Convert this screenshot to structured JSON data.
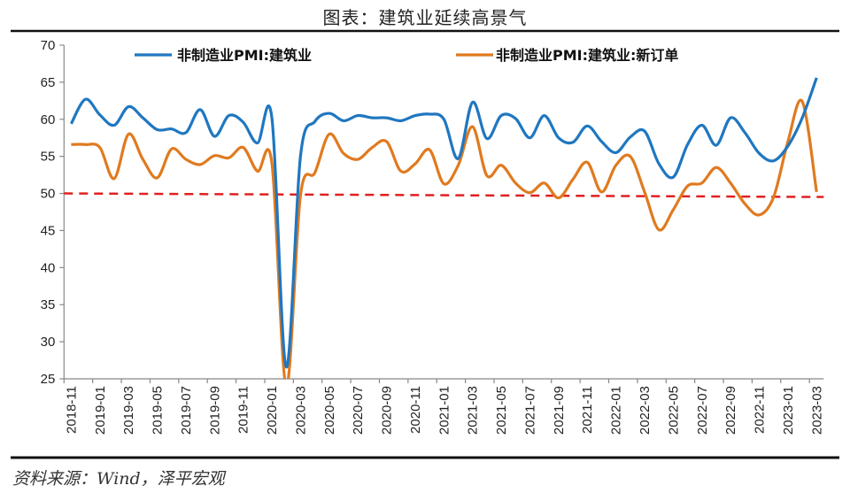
{
  "chart_data": {
    "type": "line",
    "title": "图表：建筑业延续高景气",
    "source": "资料来源：Wind，泽平宏观",
    "xlabel": "",
    "ylabel": "",
    "ylim": [
      25,
      70
    ],
    "yticks": [
      25,
      30,
      35,
      40,
      45,
      50,
      55,
      60,
      65,
      70
    ],
    "grid": false,
    "legend_position": "top",
    "categories": [
      "2018-11",
      "2018-12",
      "2019-01",
      "2019-02",
      "2019-03",
      "2019-04",
      "2019-05",
      "2019-06",
      "2019-07",
      "2019-08",
      "2019-09",
      "2019-10",
      "2019-11",
      "2019-12",
      "2020-01",
      "2020-02",
      "2020-03",
      "2020-04",
      "2020-05",
      "2020-06",
      "2020-07",
      "2020-08",
      "2020-09",
      "2020-10",
      "2020-11",
      "2020-12",
      "2021-01",
      "2021-02",
      "2021-03",
      "2021-04",
      "2021-05",
      "2021-06",
      "2021-07",
      "2021-08",
      "2021-09",
      "2021-10",
      "2021-11",
      "2021-12",
      "2022-01",
      "2022-02",
      "2022-03",
      "2022-04",
      "2022-05",
      "2022-06",
      "2022-07",
      "2022-08",
      "2022-09",
      "2022-10",
      "2022-11",
      "2022-12",
      "2023-01",
      "2023-02",
      "2023-03"
    ],
    "series": [
      {
        "name": "非制造业PMI:建筑业",
        "color": "#1f77c0",
        "values": [
          59.4,
          62.7,
          60.6,
          59.2,
          61.7,
          60.2,
          58.6,
          58.7,
          58.2,
          61.3,
          57.7,
          60.5,
          59.6,
          56.8,
          60.2,
          26.6,
          55.1,
          59.7,
          60.8,
          59.8,
          60.5,
          60.2,
          60.2,
          59.8,
          60.5,
          60.7,
          60.0,
          54.7,
          62.3,
          57.4,
          60.5,
          60.1,
          57.5,
          60.5,
          57.5,
          56.9,
          59.1,
          57.0,
          55.5,
          57.6,
          58.4,
          54.0,
          52.2,
          56.6,
          59.2,
          56.5,
          60.2,
          58.2,
          55.4,
          54.4,
          56.4,
          60.2,
          65.6
        ]
      },
      {
        "name": "非制造业PMI:建筑业:新订单",
        "color": "#e07a1f",
        "values": [
          56.6,
          56.6,
          56.2,
          52.0,
          58.0,
          54.6,
          52.1,
          56.0,
          54.6,
          53.9,
          55.1,
          54.8,
          56.2,
          53.0,
          54.1,
          24.0,
          49.8,
          52.8,
          58.0,
          55.4,
          54.6,
          56.2,
          57.0,
          53.0,
          54.0,
          55.9,
          51.3,
          53.8,
          59.0,
          52.4,
          53.8,
          51.4,
          50.1,
          51.4,
          49.4,
          51.9,
          54.2,
          50.2,
          53.8,
          55.0,
          50.2,
          45.1,
          47.8,
          51.0,
          51.4,
          53.5,
          51.4,
          48.6,
          47.1,
          49.5,
          57.0,
          62.4,
          50.2
        ]
      }
    ],
    "reference_line": {
      "value": 50,
      "color": "#e02020",
      "style": "dashed"
    },
    "x_label_every": 2
  }
}
